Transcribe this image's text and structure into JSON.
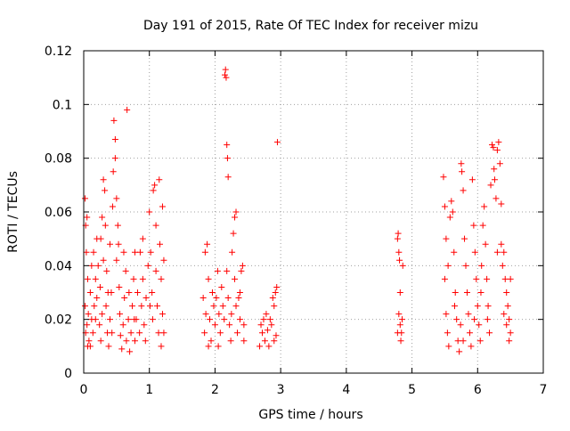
{
  "chart_data": {
    "type": "scatter",
    "title": "Day 191 of 2015, Rate Of TEC Index for receiver mizu",
    "xlabel": "GPS time / hours",
    "ylabel": "ROTI / TECUs",
    "xlim": [
      0,
      7
    ],
    "ylim": [
      0,
      0.12
    ],
    "grid": true,
    "marker": "+",
    "x_ticks": [
      0,
      1,
      2,
      3,
      4,
      5,
      6,
      7
    ],
    "x_tick_labels": [
      "0",
      "1",
      "2",
      "3",
      "4",
      "5",
      "6",
      "7"
    ],
    "y_ticks": [
      0,
      0.02,
      0.04,
      0.06,
      0.08,
      0.1,
      0.12
    ],
    "y_tick_labels": [
      "0",
      "0.02",
      "0.04",
      "0.06",
      "0.08",
      "0.1",
      "0.12"
    ],
    "series": [
      {
        "name": "ROTI",
        "color": "#ff0000",
        "points": [
          [
            0.02,
            0.065
          ],
          [
            0.03,
            0.055
          ],
          [
            0.05,
            0.058
          ],
          [
            0.04,
            0.045
          ],
          [
            0.06,
            0.035
          ],
          [
            0.02,
            0.025
          ],
          [
            0.05,
            0.018
          ],
          [
            0.08,
            0.012
          ],
          [
            0.03,
            0.015
          ],
          [
            0.07,
            0.022
          ],
          [
            0.1,
            0.03
          ],
          [
            0.12,
            0.02
          ],
          [
            0.14,
            0.015
          ],
          [
            0.1,
            0.01
          ],
          [
            0.16,
            0.025
          ],
          [
            0.18,
            0.035
          ],
          [
            0.15,
            0.045
          ],
          [
            0.2,
            0.05
          ],
          [
            0.22,
            0.04
          ],
          [
            0.2,
            0.028
          ],
          [
            0.24,
            0.018
          ],
          [
            0.26,
            0.012
          ],
          [
            0.28,
            0.022
          ],
          [
            0.25,
            0.032
          ],
          [
            0.3,
            0.042
          ],
          [
            0.28,
            0.058
          ],
          [
            0.3,
            0.072
          ],
          [
            0.32,
            0.068
          ],
          [
            0.33,
            0.055
          ],
          [
            0.35,
            0.038
          ],
          [
            0.34,
            0.025
          ],
          [
            0.36,
            0.015
          ],
          [
            0.38,
            0.01
          ],
          [
            0.4,
            0.02
          ],
          [
            0.42,
            0.03
          ],
          [
            0.4,
            0.048
          ],
          [
            0.44,
            0.062
          ],
          [
            0.45,
            0.075
          ],
          [
            0.46,
            0.094
          ],
          [
            0.48,
            0.087
          ],
          [
            0.48,
            0.08
          ],
          [
            0.5,
            0.065
          ],
          [
            0.52,
            0.055
          ],
          [
            0.5,
            0.042
          ],
          [
            0.54,
            0.032
          ],
          [
            0.55,
            0.022
          ],
          [
            0.56,
            0.014
          ],
          [
            0.58,
            0.009
          ],
          [
            0.6,
            0.018
          ],
          [
            0.62,
            0.028
          ],
          [
            0.64,
            0.038
          ],
          [
            0.66,
            0.098
          ],
          [
            0.65,
            0.012
          ],
          [
            0.68,
            0.02
          ],
          [
            0.7,
            0.008
          ],
          [
            0.72,
            0.015
          ],
          [
            0.74,
            0.025
          ],
          [
            0.76,
            0.035
          ],
          [
            0.78,
            0.045
          ],
          [
            0.78,
            0.012
          ],
          [
            0.8,
            0.02
          ],
          [
            0.82,
            0.03
          ],
          [
            0.85,
            0.015
          ],
          [
            0.88,
            0.025
          ],
          [
            0.9,
            0.05
          ],
          [
            0.9,
            0.035
          ],
          [
            0.92,
            0.018
          ],
          [
            0.95,
            0.028
          ],
          [
            0.98,
            0.04
          ],
          [
            1.0,
            0.06
          ],
          [
            1.02,
            0.045
          ],
          [
            1.04,
            0.03
          ],
          [
            1.05,
            0.02
          ],
          [
            1.06,
            0.068
          ],
          [
            1.08,
            0.07
          ],
          [
            1.1,
            0.055
          ],
          [
            1.1,
            0.038
          ],
          [
            1.12,
            0.025
          ],
          [
            1.14,
            0.015
          ],
          [
            1.15,
            0.072
          ],
          [
            1.16,
            0.048
          ],
          [
            1.18,
            0.035
          ],
          [
            1.18,
            0.01
          ],
          [
            1.2,
            0.022
          ],
          [
            1.2,
            0.062
          ],
          [
            1.22,
            0.042
          ],
          [
            1.22,
            0.015
          ],
          [
            0.06,
            0.01
          ],
          [
            0.12,
            0.04
          ],
          [
            0.18,
            0.02
          ],
          [
            0.26,
            0.05
          ],
          [
            0.37,
            0.03
          ],
          [
            0.43,
            0.015
          ],
          [
            0.53,
            0.048
          ],
          [
            0.61,
            0.045
          ],
          [
            0.69,
            0.03
          ],
          [
            0.77,
            0.02
          ],
          [
            0.86,
            0.045
          ],
          [
            0.94,
            0.012
          ],
          [
            1.01,
            0.025
          ],
          [
            1.85,
            0.045
          ],
          [
            1.82,
            0.028
          ],
          [
            1.84,
            0.015
          ],
          [
            1.86,
            0.022
          ],
          [
            1.88,
            0.048
          ],
          [
            1.9,
            0.035
          ],
          [
            1.92,
            0.02
          ],
          [
            1.94,
            0.012
          ],
          [
            1.96,
            0.03
          ],
          [
            1.98,
            0.025
          ],
          [
            2.0,
            0.018
          ],
          [
            2.02,
            0.028
          ],
          [
            2.04,
            0.038
          ],
          [
            2.06,
            0.022
          ],
          [
            2.08,
            0.015
          ],
          [
            2.1,
            0.032
          ],
          [
            2.12,
            0.025
          ],
          [
            2.14,
            0.02
          ],
          [
            2.15,
            0.111
          ],
          [
            2.16,
            0.113
          ],
          [
            2.17,
            0.11
          ],
          [
            2.18,
            0.085
          ],
          [
            2.19,
            0.08
          ],
          [
            2.2,
            0.073
          ],
          [
            2.18,
            0.038
          ],
          [
            2.2,
            0.028
          ],
          [
            2.22,
            0.018
          ],
          [
            2.24,
            0.012
          ],
          [
            2.26,
            0.045
          ],
          [
            2.28,
            0.052
          ],
          [
            2.3,
            0.058
          ],
          [
            2.32,
            0.06
          ],
          [
            2.3,
            0.035
          ],
          [
            2.32,
            0.025
          ],
          [
            2.34,
            0.015
          ],
          [
            2.36,
            0.028
          ],
          [
            2.38,
            0.02
          ],
          [
            2.4,
            0.038
          ],
          [
            2.42,
            0.04
          ],
          [
            2.44,
            0.018
          ],
          [
            2.44,
            0.012
          ],
          [
            1.9,
            0.01
          ],
          [
            2.05,
            0.01
          ],
          [
            2.25,
            0.022
          ],
          [
            2.38,
            0.03
          ],
          [
            2.68,
            0.01
          ],
          [
            2.7,
            0.018
          ],
          [
            2.72,
            0.015
          ],
          [
            2.74,
            0.02
          ],
          [
            2.76,
            0.012
          ],
          [
            2.78,
            0.022
          ],
          [
            2.8,
            0.016
          ],
          [
            2.82,
            0.01
          ],
          [
            2.84,
            0.02
          ],
          [
            2.86,
            0.018
          ],
          [
            2.88,
            0.028
          ],
          [
            2.9,
            0.025
          ],
          [
            2.92,
            0.03
          ],
          [
            2.94,
            0.032
          ],
          [
            2.95,
            0.086
          ],
          [
            2.93,
            0.014
          ],
          [
            2.9,
            0.012
          ],
          [
            4.78,
            0.05
          ],
          [
            4.79,
            0.052
          ],
          [
            4.8,
            0.045
          ],
          [
            4.81,
            0.042
          ],
          [
            4.82,
            0.03
          ],
          [
            4.8,
            0.022
          ],
          [
            4.82,
            0.018
          ],
          [
            4.84,
            0.015
          ],
          [
            4.83,
            0.012
          ],
          [
            4.85,
            0.02
          ],
          [
            4.78,
            0.015
          ],
          [
            4.86,
            0.04
          ],
          [
            5.48,
            0.073
          ],
          [
            5.5,
            0.062
          ],
          [
            5.52,
            0.05
          ],
          [
            5.5,
            0.035
          ],
          [
            5.52,
            0.022
          ],
          [
            5.54,
            0.015
          ],
          [
            5.56,
            0.01
          ],
          [
            5.58,
            0.058
          ],
          [
            5.6,
            0.064
          ],
          [
            5.62,
            0.06
          ],
          [
            5.64,
            0.045
          ],
          [
            5.66,
            0.03
          ],
          [
            5.68,
            0.02
          ],
          [
            5.7,
            0.012
          ],
          [
            5.72,
            0.008
          ],
          [
            5.74,
            0.018
          ],
          [
            5.75,
            0.078
          ],
          [
            5.76,
            0.075
          ],
          [
            5.78,
            0.068
          ],
          [
            5.8,
            0.05
          ],
          [
            5.82,
            0.04
          ],
          [
            5.84,
            0.03
          ],
          [
            5.86,
            0.022
          ],
          [
            5.88,
            0.015
          ],
          [
            5.9,
            0.01
          ],
          [
            5.92,
            0.072
          ],
          [
            5.94,
            0.055
          ],
          [
            5.96,
            0.045
          ],
          [
            5.98,
            0.035
          ],
          [
            6.0,
            0.025
          ],
          [
            6.02,
            0.018
          ],
          [
            6.04,
            0.012
          ],
          [
            6.06,
            0.04
          ],
          [
            6.08,
            0.055
          ],
          [
            6.1,
            0.062
          ],
          [
            6.12,
            0.048
          ],
          [
            6.14,
            0.035
          ],
          [
            6.16,
            0.025
          ],
          [
            6.18,
            0.015
          ],
          [
            6.2,
            0.07
          ],
          [
            6.22,
            0.085
          ],
          [
            6.24,
            0.084
          ],
          [
            6.25,
            0.076
          ],
          [
            6.26,
            0.072
          ],
          [
            6.28,
            0.065
          ],
          [
            6.3,
            0.083
          ],
          [
            6.32,
            0.086
          ],
          [
            6.34,
            0.078
          ],
          [
            6.36,
            0.063
          ],
          [
            6.36,
            0.048
          ],
          [
            6.38,
            0.04
          ],
          [
            6.4,
            0.045
          ],
          [
            6.42,
            0.035
          ],
          [
            6.44,
            0.03
          ],
          [
            6.46,
            0.025
          ],
          [
            6.48,
            0.02
          ],
          [
            6.5,
            0.015
          ],
          [
            6.5,
            0.035
          ],
          [
            6.48,
            0.012
          ],
          [
            6.44,
            0.018
          ],
          [
            5.55,
            0.04
          ],
          [
            5.65,
            0.025
          ],
          [
            5.78,
            0.012
          ],
          [
            5.95,
            0.02
          ],
          [
            6.05,
            0.03
          ],
          [
            6.15,
            0.02
          ],
          [
            6.3,
            0.045
          ],
          [
            6.4,
            0.022
          ]
        ]
      }
    ]
  }
}
